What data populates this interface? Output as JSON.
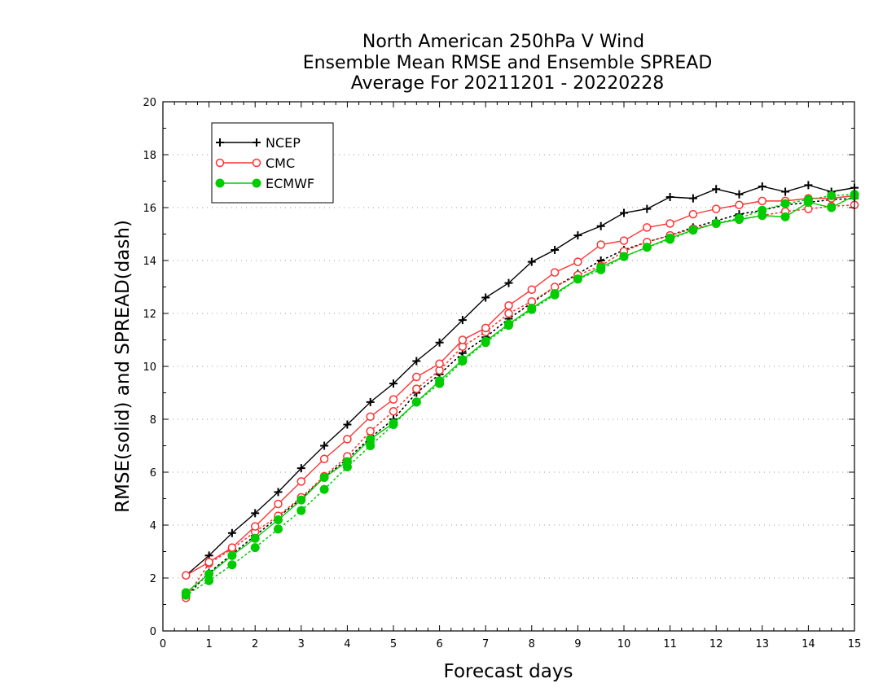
{
  "chart_data": {
    "type": "line",
    "title": [
      "North American 250hPa V Wind",
      "Ensemble Mean RMSE and Ensemble SPREAD",
      "Average For 20211201 - 20220228"
    ],
    "xlabel": "Forecast days",
    "ylabel": "RMSE(solid) and SPREAD(dash)",
    "xlim": [
      0,
      15
    ],
    "ylim": [
      0,
      20
    ],
    "xticks": [
      0,
      1,
      2,
      3,
      4,
      5,
      6,
      7,
      8,
      9,
      10,
      11,
      12,
      13,
      14,
      15
    ],
    "yticks": [
      0,
      2,
      4,
      6,
      8,
      10,
      12,
      14,
      16,
      18,
      20
    ],
    "grid": "horizontal-dotted",
    "legend_position": "top-left",
    "x": [
      0.5,
      1,
      1.5,
      2,
      2.5,
      3,
      3.5,
      4,
      4.5,
      5,
      5.5,
      6,
      6.5,
      7,
      7.5,
      8,
      8.5,
      9,
      9.5,
      10,
      10.5,
      11,
      11.5,
      12,
      12.5,
      13,
      13.5,
      14,
      14.5,
      15
    ],
    "series": [
      {
        "name": "NCEP",
        "color": "#000000",
        "marker": "plus",
        "rmse": [
          2.1,
          2.85,
          3.7,
          4.45,
          5.25,
          6.15,
          7.0,
          7.8,
          8.65,
          9.35,
          10.2,
          10.9,
          11.75,
          12.6,
          13.15,
          13.95,
          14.4,
          14.95,
          15.3,
          15.8,
          15.95,
          16.4,
          16.35,
          16.7,
          16.5,
          16.8,
          16.6,
          16.85,
          16.6,
          16.75
        ],
        "spread": [
          1.3,
          2.2,
          2.9,
          3.6,
          4.3,
          5.0,
          5.8,
          6.5,
          7.3,
          8.0,
          9.0,
          9.7,
          10.5,
          11.1,
          11.8,
          12.4,
          13.0,
          13.5,
          14.0,
          14.4,
          14.7,
          14.95,
          15.25,
          15.5,
          15.75,
          15.9,
          16.1,
          16.2,
          16.3,
          16.35
        ]
      },
      {
        "name": "CMC",
        "color": "#ff3333",
        "marker": "open-circle",
        "rmse": [
          2.1,
          2.6,
          3.15,
          3.95,
          4.8,
          5.65,
          6.5,
          7.25,
          8.1,
          8.75,
          9.6,
          10.1,
          11.0,
          11.45,
          12.3,
          12.9,
          13.55,
          13.95,
          14.6,
          14.75,
          15.25,
          15.4,
          15.75,
          15.95,
          16.1,
          16.25,
          16.25,
          16.35,
          16.35,
          16.45
        ],
        "spread": [
          1.25,
          2.55,
          3.1,
          3.75,
          4.35,
          5.05,
          5.85,
          6.6,
          7.55,
          8.3,
          9.15,
          9.85,
          10.75,
          11.3,
          12.0,
          12.45,
          13.0,
          13.45,
          13.8,
          14.35,
          14.7,
          14.95,
          15.2,
          15.4,
          15.55,
          15.7,
          15.85,
          15.95,
          16.05,
          16.1
        ]
      },
      {
        "name": "ECMWF",
        "color": "#00cc00",
        "marker": "filled-circle",
        "rmse": [
          1.45,
          2.15,
          2.85,
          3.5,
          4.2,
          4.95,
          5.8,
          6.4,
          7.25,
          7.85,
          8.65,
          9.45,
          10.25,
          10.95,
          11.6,
          12.2,
          12.75,
          13.3,
          13.75,
          14.15,
          14.5,
          14.85,
          15.15,
          15.4,
          15.55,
          15.7,
          15.65,
          16.2,
          16.0,
          16.45
        ],
        "spread": [
          1.35,
          1.9,
          2.5,
          3.15,
          3.85,
          4.55,
          5.35,
          6.2,
          7.0,
          7.8,
          8.65,
          9.35,
          10.2,
          10.9,
          11.55,
          12.15,
          12.7,
          13.3,
          13.65,
          14.15,
          14.5,
          14.8,
          15.15,
          15.4,
          15.6,
          15.9,
          16.15,
          16.3,
          16.45,
          16.5
        ]
      }
    ]
  }
}
